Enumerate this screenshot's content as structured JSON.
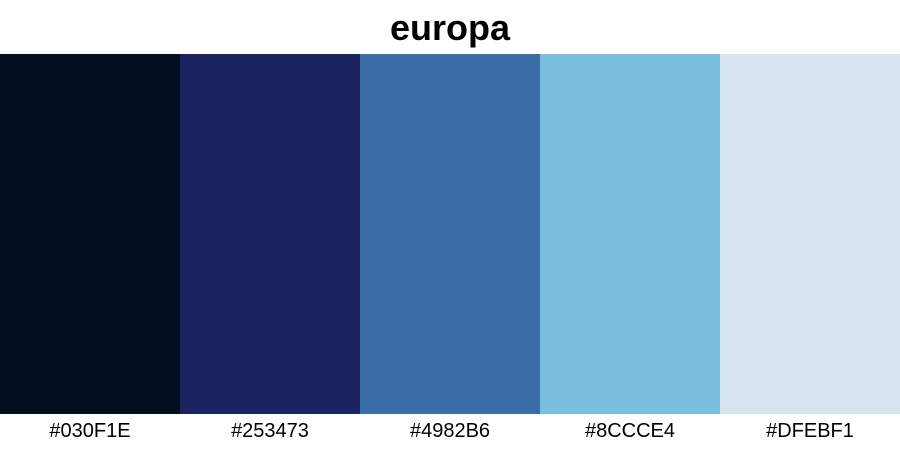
{
  "title": "europa",
  "palette": [
    {
      "hex": "#030F1E",
      "label": "#030F1E"
    },
    {
      "hex": "#1B2260",
      "label": "#253473"
    },
    {
      "hex": "#3B6DA8",
      "label": "#4982B6"
    },
    {
      "hex": "#7BBFDE",
      "label": "#8CCCE4"
    },
    {
      "hex": "#D6E5EE",
      "label": "#DFEBF1"
    }
  ]
}
